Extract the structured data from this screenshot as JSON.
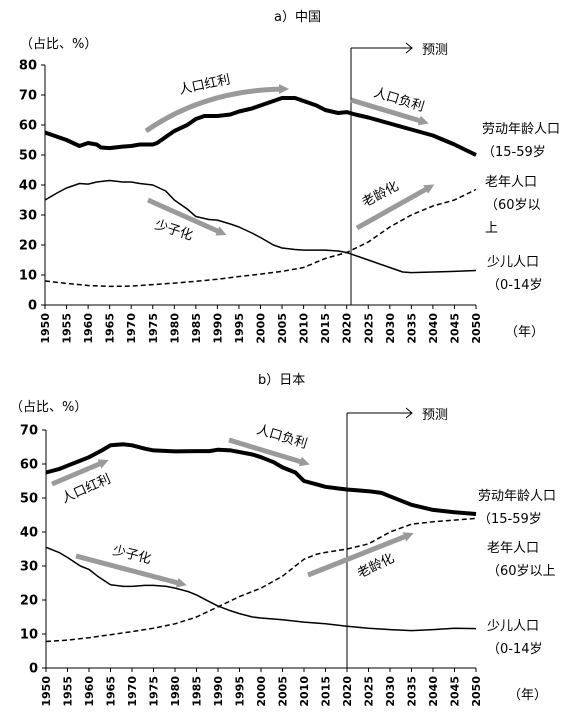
{
  "chart_data": [
    {
      "type": "line",
      "title": "a）中国",
      "ylabel": "（占比、%）",
      "xlabel": "（年）",
      "ylim": [
        0,
        80
      ],
      "xlim": [
        1950,
        2050
      ],
      "yticks": [
        "0",
        "10",
        "20",
        "30",
        "40",
        "50",
        "60",
        "70",
        "80"
      ],
      "xticks": [
        "1950",
        "1955",
        "1960",
        "1965",
        "1970",
        "1975",
        "1980",
        "1985",
        "1990",
        "1995",
        "2000",
        "2005",
        "2010",
        "2015",
        "2020",
        "2025",
        "2030",
        "2035",
        "2040",
        "2045",
        "2050"
      ],
      "forecast_year": 2021,
      "forecast_label": "预测",
      "series": [
        {
          "name": "劳动年龄人口（15-59岁",
          "name_line1": "劳动年龄人口",
          "name_line2": "（15-59岁",
          "style": "thick",
          "points": [
            [
              1950,
              57.5
            ],
            [
              1953,
              56
            ],
            [
              1955,
              55
            ],
            [
              1958,
              53
            ],
            [
              1960,
              54
            ],
            [
              1962,
              53.5
            ],
            [
              1963,
              52.5
            ],
            [
              1965,
              52.3
            ],
            [
              1968,
              52.8
            ],
            [
              1970,
              53
            ],
            [
              1972,
              53.5
            ],
            [
              1975,
              53.5
            ],
            [
              1976,
              54
            ],
            [
              1978,
              56
            ],
            [
              1980,
              58
            ],
            [
              1983,
              60
            ],
            [
              1985,
              62
            ],
            [
              1987,
              63
            ],
            [
              1990,
              63
            ],
            [
              1993,
              63.5
            ],
            [
              1995,
              64.5
            ],
            [
              1998,
              65.5
            ],
            [
              2000,
              66.5
            ],
            [
              2003,
              68
            ],
            [
              2005,
              69
            ],
            [
              2008,
              69
            ],
            [
              2010,
              68
            ],
            [
              2013,
              66.5
            ],
            [
              2015,
              65
            ],
            [
              2018,
              64
            ],
            [
              2020,
              64.3
            ],
            [
              2022,
              63.5
            ],
            [
              2025,
              62.5
            ],
            [
              2030,
              60.5
            ],
            [
              2035,
              58.5
            ],
            [
              2040,
              56.5
            ],
            [
              2045,
              53.5
            ],
            [
              2050,
              50
            ]
          ]
        },
        {
          "name": "老年人口（60岁以上",
          "name_line1": "老年人口",
          "name_line2": "（60岁以",
          "name_line3": "上",
          "style": "dashed",
          "points": [
            [
              1950,
              8
            ],
            [
              1955,
              7.2
            ],
            [
              1960,
              6.5
            ],
            [
              1965,
              6.2
            ],
            [
              1970,
              6.3
            ],
            [
              1975,
              6.8
            ],
            [
              1980,
              7.3
            ],
            [
              1985,
              7.9
            ],
            [
              1990,
              8.6
            ],
            [
              1995,
              9.5
            ],
            [
              2000,
              10.3
            ],
            [
              2005,
              11.2
            ],
            [
              2010,
              12.5
            ],
            [
              2015,
              15.5
            ],
            [
              2020,
              17.5
            ],
            [
              2025,
              21
            ],
            [
              2030,
              26
            ],
            [
              2035,
              30
            ],
            [
              2040,
              33
            ],
            [
              2045,
              35
            ],
            [
              2050,
              38.5
            ]
          ]
        },
        {
          "name": "少儿人口（0-14岁",
          "name_line1": "少儿人口",
          "name_line2": "（0-14岁",
          "style": "thin",
          "points": [
            [
              1950,
              35
            ],
            [
              1953,
              37.5
            ],
            [
              1955,
              39
            ],
            [
              1958,
              40.5
            ],
            [
              1960,
              40.3
            ],
            [
              1962,
              41
            ],
            [
              1965,
              41.5
            ],
            [
              1968,
              41
            ],
            [
              1970,
              41
            ],
            [
              1972,
              40.5
            ],
            [
              1975,
              40
            ],
            [
              1978,
              38
            ],
            [
              1980,
              35
            ],
            [
              1983,
              32
            ],
            [
              1985,
              29.5
            ],
            [
              1988,
              28.5
            ],
            [
              1990,
              28.3
            ],
            [
              1993,
              27
            ],
            [
              1995,
              26
            ],
            [
              1998,
              24
            ],
            [
              2000,
              22.5
            ],
            [
              2003,
              20
            ],
            [
              2005,
              19
            ],
            [
              2008,
              18.5
            ],
            [
              2010,
              18.3
            ],
            [
              2015,
              18.3
            ],
            [
              2018,
              18
            ],
            [
              2020,
              17.5
            ],
            [
              2025,
              15
            ],
            [
              2030,
              12.5
            ],
            [
              2033,
              11
            ],
            [
              2035,
              10.8
            ],
            [
              2040,
              11
            ],
            [
              2045,
              11.2
            ],
            [
              2050,
              11.5
            ]
          ]
        }
      ],
      "annotations": [
        "人口红利",
        "人口负利",
        "少子化",
        "老龄化"
      ]
    },
    {
      "type": "line",
      "title": "b）日本",
      "ylabel": "（占比、%）",
      "xlabel": "（年）",
      "ylim": [
        0,
        70
      ],
      "xlim": [
        1950,
        2050
      ],
      "yticks": [
        "0",
        "10",
        "20",
        "30",
        "40",
        "50",
        "60",
        "70"
      ],
      "xticks": [
        "1950",
        "1955",
        "1960",
        "1965",
        "1970",
        "1975",
        "1980",
        "1985",
        "1990",
        "1995",
        "2000",
        "2005",
        "2010",
        "2015",
        "2020",
        "2025",
        "2030",
        "2035",
        "2040",
        "2045",
        "2050"
      ],
      "forecast_year": 2020,
      "forecast_label": "预测",
      "series": [
        {
          "name": "劳动年龄人口（15-59岁",
          "name_line1": "劳动年龄人口",
          "name_line2": "（15-59岁",
          "style": "thick",
          "points": [
            [
              1950,
              57.5
            ],
            [
              1953,
              58.5
            ],
            [
              1955,
              59.5
            ],
            [
              1958,
              61
            ],
            [
              1960,
              62
            ],
            [
              1963,
              64
            ],
            [
              1965,
              65.5
            ],
            [
              1968,
              65.8
            ],
            [
              1970,
              65.5
            ],
            [
              1973,
              64.5
            ],
            [
              1975,
              64
            ],
            [
              1980,
              63.7
            ],
            [
              1985,
              63.8
            ],
            [
              1988,
              63.8
            ],
            [
              1990,
              64.2
            ],
            [
              1993,
              64
            ],
            [
              1995,
              63.5
            ],
            [
              1998,
              62.8
            ],
            [
              2000,
              62
            ],
            [
              2003,
              60.5
            ],
            [
              2005,
              59
            ],
            [
              2008,
              57.5
            ],
            [
              2010,
              55
            ],
            [
              2013,
              54
            ],
            [
              2015,
              53.3
            ],
            [
              2018,
              52.8
            ],
            [
              2020,
              52.5
            ],
            [
              2025,
              52
            ],
            [
              2028,
              51.5
            ],
            [
              2030,
              50.5
            ],
            [
              2035,
              48
            ],
            [
              2040,
              46.5
            ],
            [
              2045,
              45.8
            ],
            [
              2050,
              45.3
            ]
          ]
        },
        {
          "name": "老年人口（60岁以上",
          "name_line1": "老年人口",
          "name_line2": "（60岁以上",
          "style": "dashed",
          "points": [
            [
              1950,
              7.8
            ],
            [
              1955,
              8.2
            ],
            [
              1960,
              8.9
            ],
            [
              1965,
              9.8
            ],
            [
              1970,
              10.7
            ],
            [
              1975,
              11.7
            ],
            [
              1980,
              13
            ],
            [
              1985,
              15
            ],
            [
              1990,
              18
            ],
            [
              1995,
              21
            ],
            [
              2000,
              23.5
            ],
            [
              2005,
              27
            ],
            [
              2008,
              30
            ],
            [
              2010,
              32
            ],
            [
              2013,
              33.5
            ],
            [
              2015,
              34
            ],
            [
              2020,
              35
            ],
            [
              2025,
              36.5
            ],
            [
              2030,
              40
            ],
            [
              2035,
              42.3
            ],
            [
              2040,
              43
            ],
            [
              2045,
              43.5
            ],
            [
              2050,
              44
            ]
          ]
        },
        {
          "name": "少儿人口（0-14岁",
          "name_line1": "少儿人口",
          "name_line2": "（0-14岁",
          "style": "thin",
          "points": [
            [
              1950,
              35.5
            ],
            [
              1953,
              34
            ],
            [
              1955,
              32.5
            ],
            [
              1958,
              30
            ],
            [
              1960,
              29
            ],
            [
              1962,
              27
            ],
            [
              1965,
              24.5
            ],
            [
              1968,
              24
            ],
            [
              1970,
              24
            ],
            [
              1973,
              24.3
            ],
            [
              1975,
              24.3
            ],
            [
              1978,
              24
            ],
            [
              1980,
              23.5
            ],
            [
              1983,
              22.5
            ],
            [
              1985,
              21.5
            ],
            [
              1988,
              19.5
            ],
            [
              1990,
              18.2
            ],
            [
              1993,
              16.8
            ],
            [
              1995,
              16
            ],
            [
              1998,
              15
            ],
            [
              2000,
              14.7
            ],
            [
              2005,
              14.2
            ],
            [
              2010,
              13.5
            ],
            [
              2015,
              13
            ],
            [
              2020,
              12.3
            ],
            [
              2025,
              11.7
            ],
            [
              2030,
              11.3
            ],
            [
              2035,
              11
            ],
            [
              2040,
              11.3
            ],
            [
              2045,
              11.7
            ],
            [
              2050,
              11.6
            ]
          ]
        }
      ],
      "annotations": [
        "人口红利",
        "人口负利",
        "少子化",
        "老龄化"
      ]
    }
  ]
}
